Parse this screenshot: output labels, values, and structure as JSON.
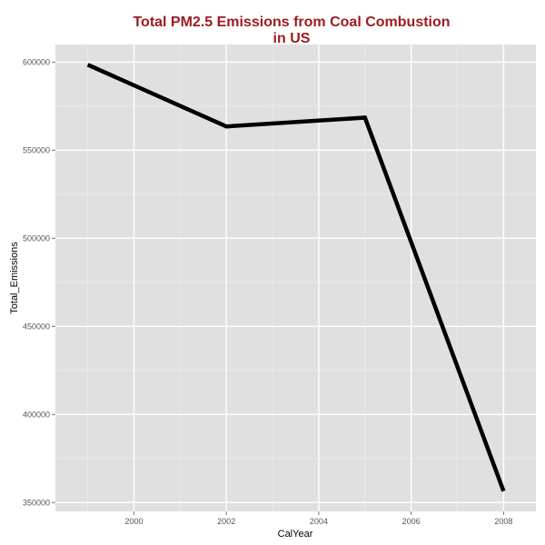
{
  "chart_data": {
    "type": "line",
    "title_lines": [
      "Total PM2.5 Emissions from Coal Combustion",
      "in US"
    ],
    "xlabel": "CalYear",
    "ylabel": "Total_Emissions",
    "x": [
      1999,
      2002,
      2005,
      2008
    ],
    "series": [
      {
        "values": [
          598500,
          563500,
          568500,
          356500
        ]
      }
    ],
    "xlim": [
      1998.3,
      2008.7
    ],
    "ylim": [
      345000,
      610000
    ],
    "x_ticks": [
      2000,
      2002,
      2004,
      2006,
      2008
    ],
    "x_tick_labels": [
      "2000",
      "2002",
      "2004",
      "2006",
      "2008"
    ],
    "y_ticks": [
      350000,
      400000,
      450000,
      500000,
      550000,
      600000
    ],
    "y_tick_labels": [
      "350000",
      "400000",
      "450000",
      "500000",
      "550000",
      "600000"
    ],
    "grid": true,
    "legend": "none",
    "colors": {
      "panel_background": "#e0e0e0",
      "grid_major": "#ffffff",
      "grid_minor": "#ebebeb",
      "line": "#000000",
      "title": "#9b1c20"
    }
  }
}
